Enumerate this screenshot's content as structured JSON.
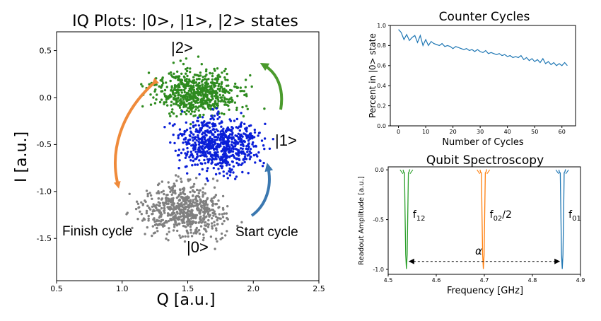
{
  "chart_data": [
    {
      "type": "scatter",
      "title": "IQ Plots: |0>, |1>, |2> states",
      "xlabel": "Q [a.u.]",
      "ylabel": "I [a.u.]",
      "xlim": [
        0.5,
        2.5
      ],
      "ylim": [
        -1.95,
        0.7
      ],
      "xticks": [
        "0.5",
        "1.0",
        "1.5",
        "2.0",
        "2.5"
      ],
      "yticks": [
        "0.5",
        "0.0",
        "-0.5",
        "-1.0",
        "-1.5"
      ],
      "grid": false,
      "clusters": [
        {
          "state": "|0>",
          "color": "#808080",
          "center": [
            1.47,
            -1.2
          ],
          "spread": [
            0.16,
            0.13
          ],
          "count": 650
        },
        {
          "state": "|2>",
          "color": "#2e8b1f",
          "center": [
            1.58,
            0.05
          ],
          "spread": [
            0.16,
            0.12
          ],
          "count": 650
        },
        {
          "state": "|1>",
          "color": "#0a1fd8",
          "center": [
            1.75,
            -0.5
          ],
          "spread": [
            0.15,
            0.14
          ],
          "count": 700
        }
      ],
      "annotations": {
        "label_2": "|2>",
        "label_1": "|1>",
        "label_0": "|0>",
        "finish": "Finish cycle",
        "start": "Start cycle"
      },
      "arrow_colors": {
        "orange": "#ef8a3a",
        "green": "#4a9a2c",
        "blue": "#3b78b0"
      }
    },
    {
      "type": "line",
      "title": "Counter Cycles",
      "xlabel": "Number of Cycles",
      "ylabel": "Percent in |0> state",
      "xlim": [
        -3,
        65
      ],
      "ylim": [
        0.0,
        1.0
      ],
      "xticks": [
        "0",
        "10",
        "20",
        "30",
        "40",
        "50",
        "60"
      ],
      "yticks": [
        "0.0",
        "0.2",
        "0.4",
        "0.6",
        "0.8",
        "1.0"
      ],
      "color": "#1f77b4",
      "x": [
        0,
        1,
        2,
        3,
        4,
        5,
        6,
        7,
        8,
        9,
        10,
        11,
        12,
        13,
        14,
        15,
        16,
        17,
        18,
        19,
        20,
        21,
        22,
        23,
        24,
        25,
        26,
        27,
        28,
        29,
        30,
        31,
        32,
        33,
        34,
        35,
        36,
        37,
        38,
        39,
        40,
        41,
        42,
        43,
        44,
        45,
        46,
        47,
        48,
        49,
        50,
        51,
        52,
        53,
        54,
        55,
        56,
        57,
        58,
        59,
        60,
        61,
        62
      ],
      "y": [
        0.96,
        0.93,
        0.86,
        0.91,
        0.85,
        0.88,
        0.9,
        0.83,
        0.9,
        0.8,
        0.86,
        0.8,
        0.84,
        0.82,
        0.81,
        0.8,
        0.82,
        0.79,
        0.8,
        0.79,
        0.77,
        0.79,
        0.78,
        0.77,
        0.76,
        0.77,
        0.75,
        0.76,
        0.74,
        0.76,
        0.74,
        0.73,
        0.75,
        0.72,
        0.73,
        0.72,
        0.71,
        0.72,
        0.7,
        0.71,
        0.69,
        0.7,
        0.68,
        0.69,
        0.68,
        0.7,
        0.66,
        0.68,
        0.65,
        0.67,
        0.64,
        0.66,
        0.63,
        0.67,
        0.62,
        0.64,
        0.61,
        0.63,
        0.6,
        0.62,
        0.6,
        0.63,
        0.6
      ]
    },
    {
      "type": "line",
      "title": "Qubit Spectroscopy",
      "xlabel": "Frequency [GHz]",
      "ylabel": "Readout Amplitude [a.u.]",
      "xlim": [
        4.5,
        4.9
      ],
      "ylim": [
        -1.05,
        0.03
      ],
      "xticks": [
        "4.5",
        "4.6",
        "4.7",
        "4.8",
        "4.9"
      ],
      "yticks": [
        "0.0",
        "-0.5",
        "-1.0"
      ],
      "dips": [
        {
          "name": "f12",
          "label": "f",
          "sub": "12",
          "suffix": "",
          "center": 4.538,
          "color": "#2ca02c"
        },
        {
          "name": "f02/2",
          "label": "f",
          "sub": "02",
          "suffix": "/2",
          "center": 4.698,
          "color": "#ff7f0e"
        },
        {
          "name": "f01",
          "label": "f",
          "sub": "01",
          "suffix": "",
          "center": 4.862,
          "color": "#1f77b4"
        }
      ],
      "alpha_label": "α",
      "alpha_range": [
        4.538,
        4.862
      ],
      "alpha_level": -0.92
    }
  ]
}
